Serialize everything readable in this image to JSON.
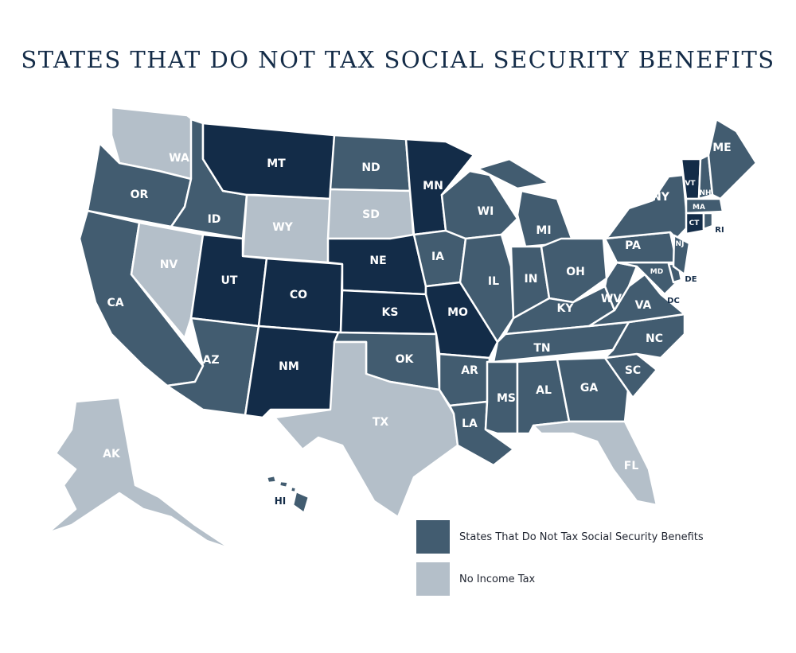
{
  "title": "STATES THAT DO NOT TAX SOCIAL SECURITY BENEFITS",
  "colors": {
    "no_ss_tax": "#425c70",
    "no_income_tax": "#b4bfc9",
    "taxes_ss": "#132c48"
  },
  "legend": [
    {
      "label": "States That Do Not Tax Social Security Benefits",
      "color": "#425c70"
    },
    {
      "label": "No Income Tax",
      "color": "#b4bfc9"
    }
  ],
  "states": {
    "WA": "no_income_tax",
    "OR": "no_ss_tax",
    "CA": "no_ss_tax",
    "NV": "no_income_tax",
    "ID": "no_ss_tax",
    "MT": "taxes_ss",
    "WY": "no_income_tax",
    "UT": "taxes_ss",
    "CO": "taxes_ss",
    "AZ": "no_ss_tax",
    "NM": "taxes_ss",
    "ND": "no_ss_tax",
    "SD": "no_income_tax",
    "NE": "taxes_ss",
    "KS": "taxes_ss",
    "OK": "no_ss_tax",
    "TX": "no_income_tax",
    "MN": "taxes_ss",
    "IA": "no_ss_tax",
    "MO": "taxes_ss",
    "AR": "no_ss_tax",
    "LA": "no_ss_tax",
    "WI": "no_ss_tax",
    "IL": "no_ss_tax",
    "MI": "no_ss_tax",
    "IN": "no_ss_tax",
    "OH": "no_ss_tax",
    "KY": "no_ss_tax",
    "TN": "no_ss_tax",
    "MS": "no_ss_tax",
    "AL": "no_ss_tax",
    "GA": "no_ss_tax",
    "FL": "no_income_tax",
    "SC": "no_ss_tax",
    "NC": "no_ss_tax",
    "VA": "no_ss_tax",
    "WV": "no_ss_tax",
    "MD": "no_ss_tax",
    "DE": "no_ss_tax",
    "DC": "no_ss_tax",
    "PA": "no_ss_tax",
    "NJ": "no_ss_tax",
    "NY": "no_ss_tax",
    "VT": "taxes_ss",
    "NH": "no_ss_tax",
    "ME": "no_ss_tax",
    "MA": "no_ss_tax",
    "CT": "taxes_ss",
    "RI": "no_ss_tax",
    "AK": "no_income_tax",
    "HI": "no_ss_tax"
  }
}
